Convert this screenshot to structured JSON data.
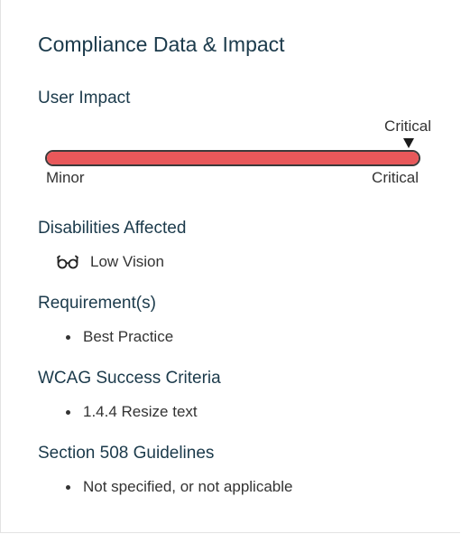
{
  "panel": {
    "title": "Compliance Data & Impact"
  },
  "impact": {
    "heading": "User Impact",
    "marker_label": "Critical",
    "min_label": "Minor",
    "max_label": "Critical",
    "level_fraction": 1.0,
    "fill_color": "#e8585a"
  },
  "disabilities": {
    "heading": "Disabilities Affected",
    "items": [
      {
        "icon": "glasses-icon",
        "label": "Low Vision"
      }
    ]
  },
  "requirements": {
    "heading": "Requirement(s)",
    "items": [
      "Best Practice"
    ]
  },
  "wcag": {
    "heading": "WCAG Success Criteria",
    "items": [
      "1.4.4 Resize text"
    ]
  },
  "section508": {
    "heading": "Section 508 Guidelines",
    "items": [
      "Not specified, or not applicable"
    ]
  }
}
